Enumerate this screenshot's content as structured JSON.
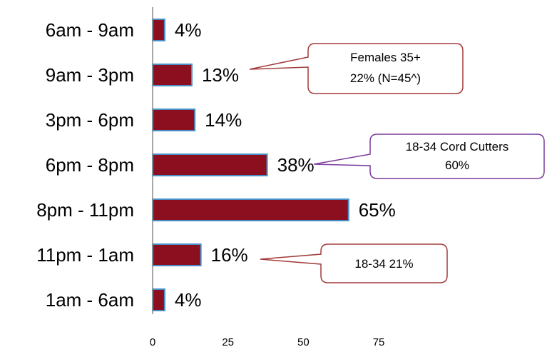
{
  "chart_data": {
    "type": "bar",
    "orientation": "horizontal",
    "categories": [
      "6am - 9am",
      "9am - 3pm",
      "3pm - 6pm",
      "6pm - 8pm",
      "8pm - 11pm",
      "11pm - 1am",
      "1am - 6am"
    ],
    "values": [
      4,
      13,
      14,
      38,
      65,
      16,
      4
    ],
    "value_labels": [
      "4%",
      "13%",
      "14%",
      "38%",
      "65%",
      "16%",
      "4%"
    ],
    "xticks": [
      "0",
      "25",
      "50",
      "75"
    ],
    "xlim": [
      0,
      75
    ],
    "grid": false,
    "legend": "none",
    "annotations": [
      {
        "lines": [
          "Females 35+",
          "22% (N=45^)"
        ],
        "category": "9am - 3pm"
      },
      {
        "lines": [
          "18-34 Cord Cutters",
          "60%"
        ],
        "category": "6pm - 8pm"
      },
      {
        "lines": [
          "18-34  21%"
        ],
        "category": "11pm - 1am"
      }
    ]
  },
  "colors": {
    "bar_fill": "#8b0f1f",
    "bar_stroke": "#4a90c8",
    "axis": "#8c8c8c",
    "callout_1_border": "#a33a3a",
    "callout_2_border": "#7a3a9c",
    "callout_3_border": "#a33a3a"
  }
}
